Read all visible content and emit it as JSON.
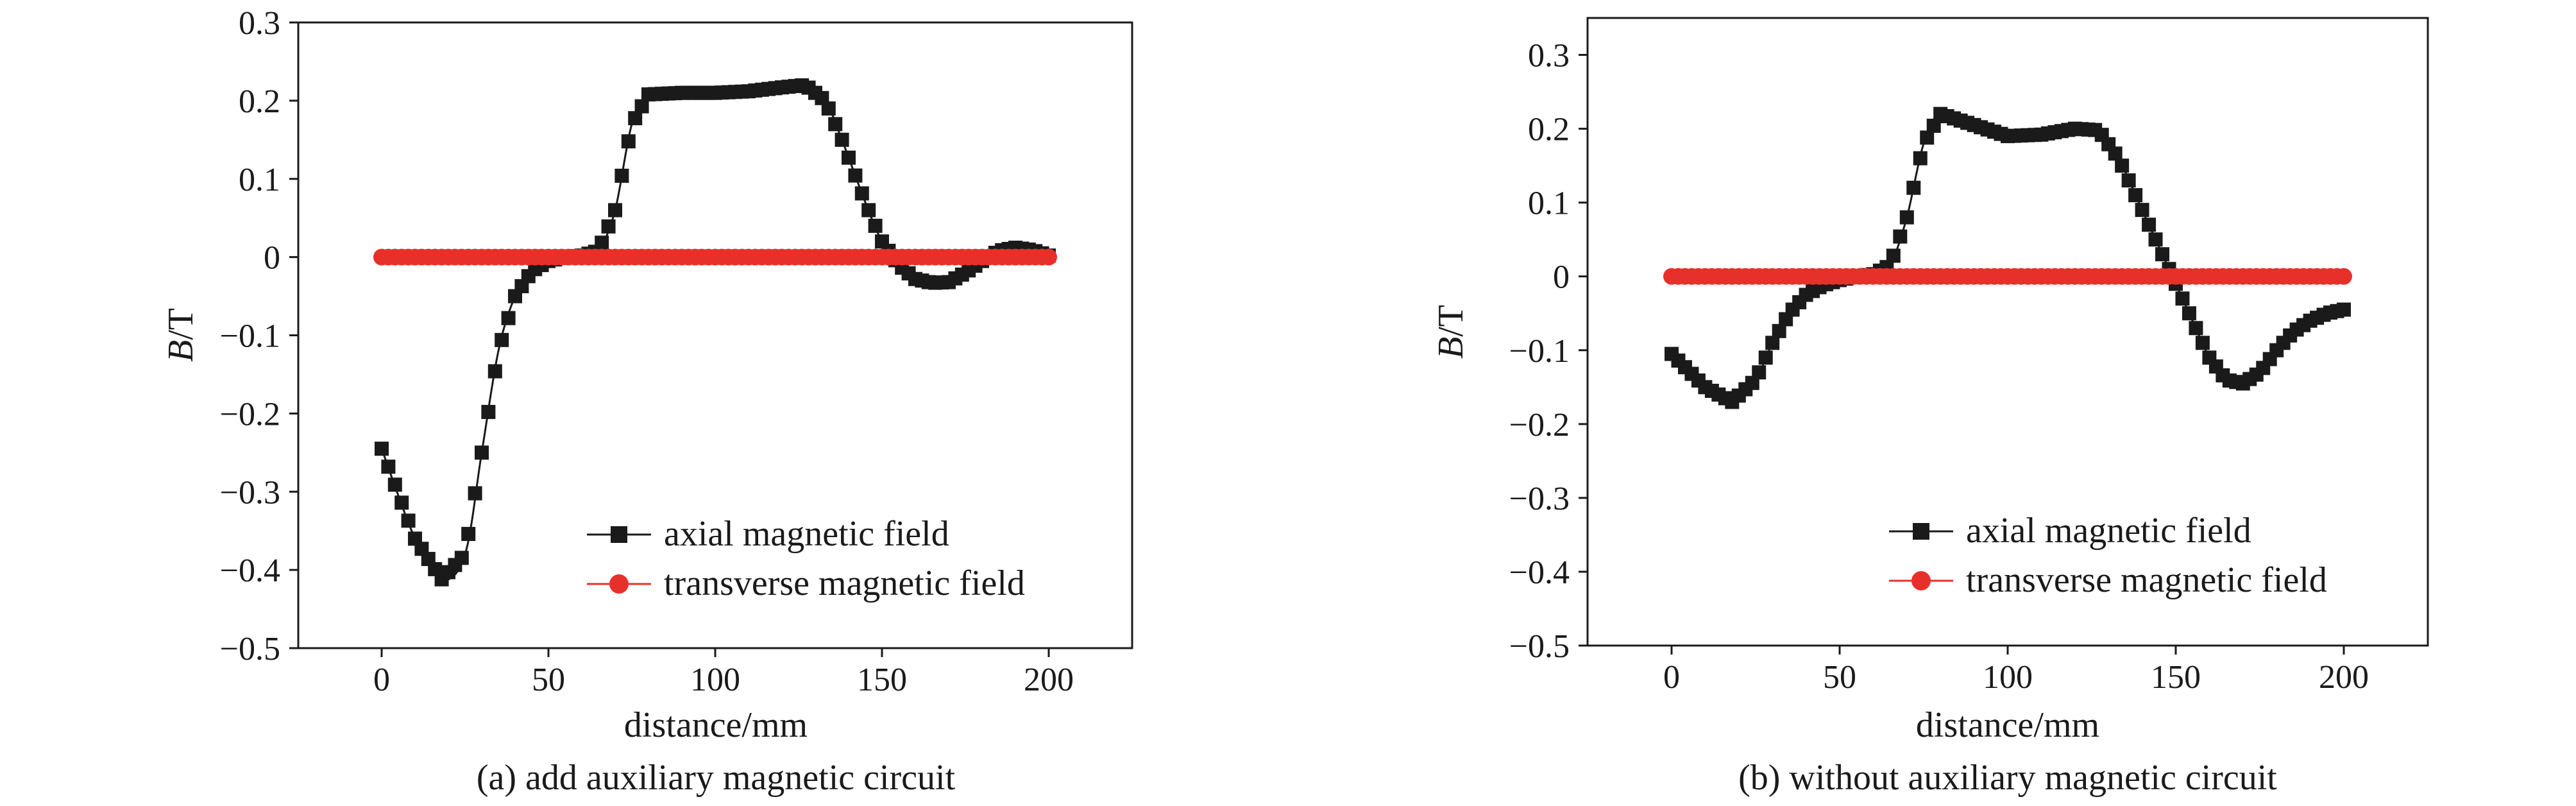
{
  "chart_data": [
    {
      "type": "line",
      "caption": "(a) add auxiliary magnetic circuit",
      "xlabel": "distance/mm",
      "ylabel_italic": "B",
      "ylabel_unit": "/T",
      "xlim": [
        -25,
        225
      ],
      "ylim": [
        -0.5,
        0.3
      ],
      "xticks": [
        0,
        50,
        100,
        150,
        200
      ],
      "xtick_labels": [
        "0",
        "50",
        "100",
        "150",
        "200"
      ],
      "yticks": [
        -0.5,
        -0.4,
        -0.3,
        -0.2,
        -0.1,
        0,
        0.1,
        0.2,
        0.3
      ],
      "ytick_labels": [
        "−0.5",
        "−0.4",
        "−0.3",
        "−0.2",
        "−0.1",
        "0",
        "0.1",
        "0.2",
        "0.3"
      ],
      "legend": [
        "axial magnetic field",
        "transverse magnetic field"
      ],
      "legend_position": "bottom-right",
      "series": [
        {
          "name": "axial magnetic field",
          "color": "#1a1a1a",
          "marker": "square",
          "x": [
            0,
            10,
            18,
            25,
            30,
            35,
            40,
            45,
            50,
            55,
            60,
            65,
            70,
            75,
            80,
            90,
            100,
            110,
            120,
            127,
            133,
            138,
            145,
            150,
            155,
            160,
            165,
            170,
            175,
            180,
            185,
            190,
            195,
            200
          ],
          "y": [
            -0.245,
            -0.36,
            -0.412,
            -0.38,
            -0.25,
            -0.12,
            -0.05,
            -0.018,
            -0.005,
            0.0,
            0.002,
            0.008,
            0.06,
            0.17,
            0.208,
            0.21,
            0.21,
            0.212,
            0.217,
            0.22,
            0.2,
            0.15,
            0.07,
            0.02,
            -0.01,
            -0.028,
            -0.033,
            -0.032,
            -0.02,
            -0.005,
            0.008,
            0.012,
            0.009,
            0.002
          ]
        },
        {
          "name": "transverse magnetic field",
          "color": "#e8302a",
          "marker": "circle",
          "x": [
            0,
            200
          ],
          "y": [
            0,
            0
          ]
        }
      ]
    },
    {
      "type": "line",
      "caption": "(b) without auxiliary magnetic circuit",
      "xlabel": "distance/mm",
      "ylabel_italic": "B",
      "ylabel_unit": "/T",
      "xlim": [
        -25,
        225
      ],
      "ylim": [
        -0.5,
        0.35
      ],
      "xticks": [
        0,
        50,
        100,
        150,
        200
      ],
      "xtick_labels": [
        "0",
        "50",
        "100",
        "150",
        "200"
      ],
      "yticks": [
        -0.5,
        -0.4,
        -0.3,
        -0.2,
        -0.1,
        0,
        0.1,
        0.2,
        0.3
      ],
      "ytick_labels": [
        "−0.5",
        "−0.4",
        "−0.3",
        "−0.2",
        "−0.1",
        "0",
        "0.1",
        "0.2",
        "0.3"
      ],
      "legend": [
        "axial magnetic field",
        "transverse magnetic field"
      ],
      "legend_position": "bottom-right",
      "series": [
        {
          "name": "axial magnetic field",
          "color": "#1a1a1a",
          "marker": "square",
          "x": [
            0,
            10,
            18,
            25,
            30,
            35,
            40,
            45,
            50,
            55,
            60,
            65,
            70,
            75,
            80,
            90,
            100,
            110,
            120,
            127,
            133,
            140,
            145,
            150,
            155,
            160,
            165,
            170,
            175,
            180,
            185,
            190,
            195,
            200
          ],
          "y": [
            -0.105,
            -0.15,
            -0.17,
            -0.14,
            -0.09,
            -0.05,
            -0.025,
            -0.012,
            -0.005,
            0.0,
            0.003,
            0.015,
            0.08,
            0.18,
            0.22,
            0.205,
            0.19,
            0.192,
            0.2,
            0.198,
            0.16,
            0.09,
            0.04,
            -0.01,
            -0.06,
            -0.11,
            -0.14,
            -0.145,
            -0.13,
            -0.1,
            -0.075,
            -0.06,
            -0.05,
            -0.045
          ]
        },
        {
          "name": "transverse magnetic field",
          "color": "#e8302a",
          "marker": "circle",
          "x": [
            0,
            200
          ],
          "y": [
            0,
            0
          ]
        }
      ]
    }
  ]
}
